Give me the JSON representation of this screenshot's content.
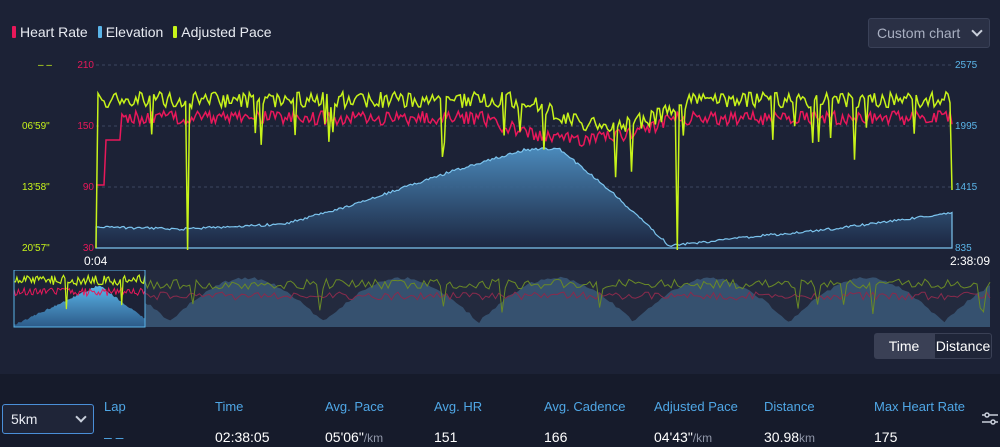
{
  "legend": [
    {
      "label": "Heart Rate",
      "color": "#e8185a"
    },
    {
      "label": "Elevation",
      "color": "#5ab4e8"
    },
    {
      "label": "Adjusted Pace",
      "color": "#c7f31a"
    }
  ],
  "custom_chart": {
    "label": "Custom chart"
  },
  "axes": {
    "left_pace_labels": [
      "– –",
      "06'59\"",
      "13'58\"",
      "20'57\""
    ],
    "left_hr_labels": [
      "210",
      "150",
      "90",
      "30"
    ],
    "right_elev_labels": [
      "2575",
      "1995",
      "1415",
      "835"
    ],
    "time_start": "0:04",
    "time_end": "2:38:09"
  },
  "toggle": {
    "time": "Time",
    "distance": "Distance",
    "selected": "Time"
  },
  "laps": {
    "split_select": "5km",
    "headers": [
      "Lap",
      "Time",
      "Avg. Pace",
      "Avg. HR",
      "Avg. Cadence",
      "Adjusted Pace",
      "Distance",
      "Max Heart Rate"
    ],
    "row": {
      "lap": "– –",
      "time": "02:38:05",
      "avg_pace": "05'06\"",
      "avg_pace_unit": "/km",
      "avg_hr": "151",
      "avg_cadence": "166",
      "adjusted_pace": "04'43\"",
      "adjusted_pace_unit": "/km",
      "distance": "30.98",
      "distance_unit": "km",
      "max_hr": "175"
    }
  }
}
